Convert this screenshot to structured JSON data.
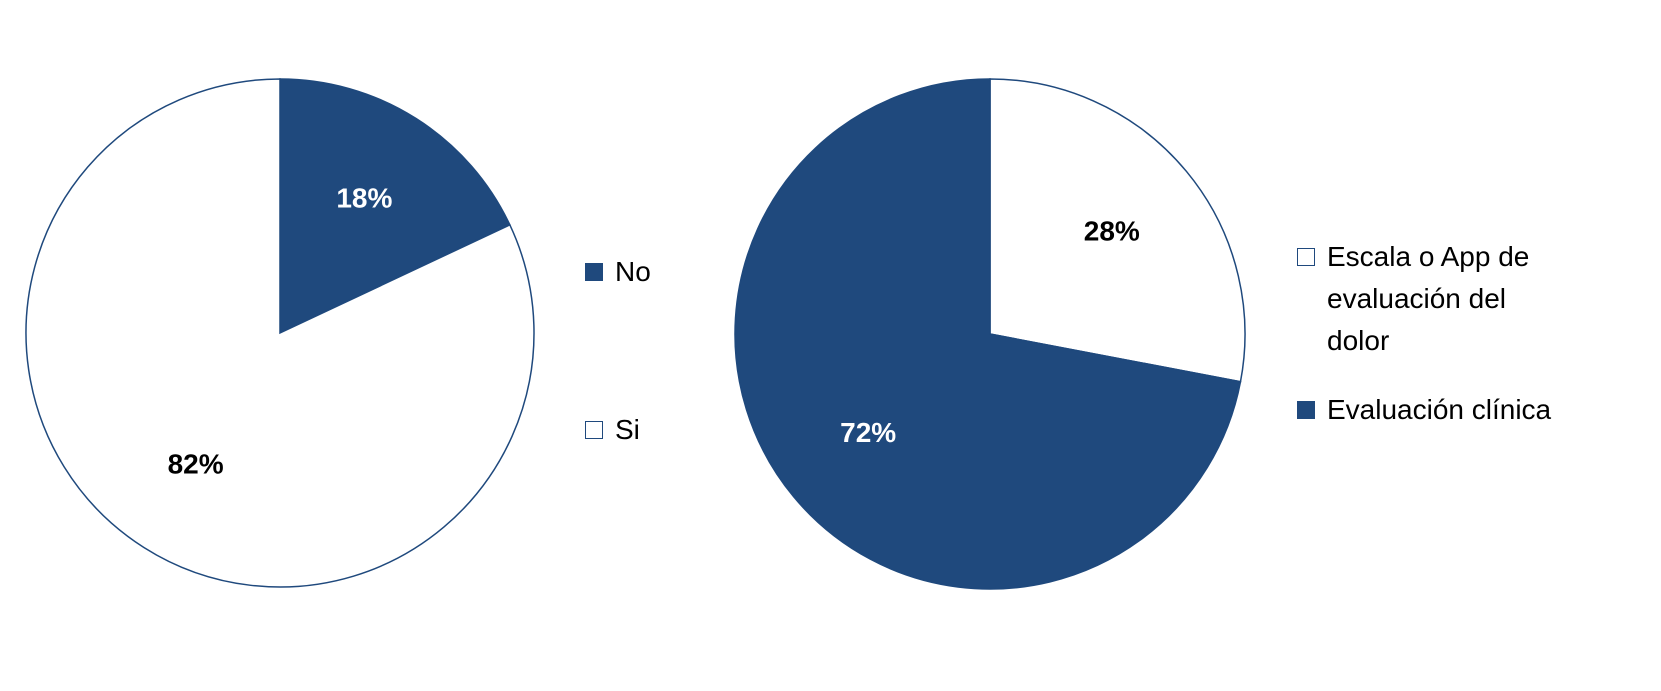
{
  "chart_data": [
    {
      "type": "pie",
      "categories": [
        "No",
        "Si"
      ],
      "values": [
        18,
        82
      ],
      "value_labels": [
        "18%",
        "82%"
      ],
      "colors": [
        "#1f497d",
        "#ffffff"
      ]
    },
    {
      "type": "pie",
      "categories": [
        "Escala o App de evaluación del dolor",
        "Evaluación clínica"
      ],
      "values": [
        28,
        72
      ],
      "value_labels": [
        "28%",
        "72%"
      ],
      "colors": [
        "#ffffff",
        "#1f497d"
      ]
    }
  ]
}
